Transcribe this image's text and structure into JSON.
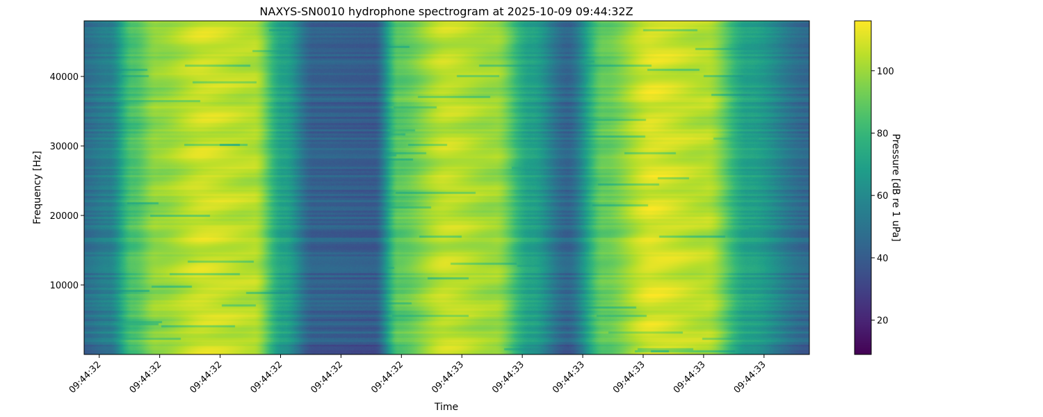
{
  "chart_data": {
    "type": "heatmap",
    "title": "NAXYS-SN0010 hydrophone spectrogram at 2025-10-09 09:44:32Z",
    "xlabel": "Time",
    "ylabel": "Frequency [Hz]",
    "colorbar_label": "Pressure [dB re 1 uPa]",
    "colormap": "viridis",
    "x_tick_labels": [
      "09:44:32",
      "09:44:32",
      "09:44:32",
      "09:44:32",
      "09:44:32",
      "09:44:32",
      "09:44:33",
      "09:44:33",
      "09:44:33",
      "09:44:33",
      "09:44:33",
      "09:44:33"
    ],
    "y_ticks": [
      10000,
      20000,
      30000,
      40000
    ],
    "ylim": [
      0,
      48000
    ],
    "colorbar_ticks": [
      20,
      40,
      60,
      80,
      100
    ],
    "color_range": [
      9,
      116
    ],
    "time_range_s": [
      0,
      1.2
    ],
    "time_tick_s": [
      0.025,
      0.125,
      0.225,
      0.325,
      0.425,
      0.525,
      0.625,
      0.725,
      0.825,
      0.925,
      1.025,
      1.125
    ],
    "time_profile_db": [
      {
        "t": 0.0,
        "db": 48
      },
      {
        "t": 0.04,
        "db": 55
      },
      {
        "t": 0.08,
        "db": 85
      },
      {
        "t": 0.12,
        "db": 98
      },
      {
        "t": 0.2,
        "db": 108
      },
      {
        "t": 0.28,
        "db": 104
      },
      {
        "t": 0.33,
        "db": 70
      },
      {
        "t": 0.38,
        "db": 42
      },
      {
        "t": 0.48,
        "db": 40
      },
      {
        "t": 0.52,
        "db": 88
      },
      {
        "t": 0.6,
        "db": 106
      },
      {
        "t": 0.68,
        "db": 100
      },
      {
        "t": 0.74,
        "db": 70
      },
      {
        "t": 0.8,
        "db": 44
      },
      {
        "t": 0.86,
        "db": 90
      },
      {
        "t": 0.94,
        "db": 110
      },
      {
        "t": 1.03,
        "db": 104
      },
      {
        "t": 1.1,
        "db": 70
      },
      {
        "t": 1.2,
        "db": 45
      }
    ]
  }
}
